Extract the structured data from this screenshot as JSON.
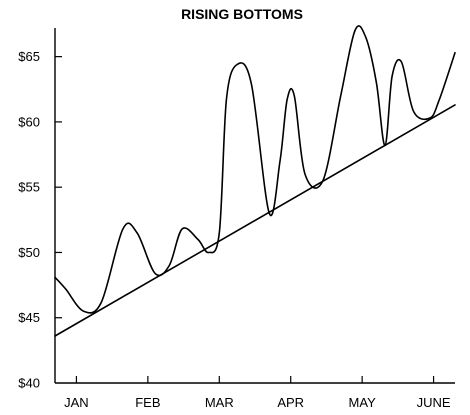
{
  "chart_data": {
    "type": "line",
    "title": "RISING BOTTOMS",
    "xlabel": "",
    "ylabel": "",
    "x_months": [
      "JAN",
      "FEB",
      "MAR",
      "APR",
      "MAY",
      "JUNE"
    ],
    "xlim": [
      -0.3,
      5.3
    ],
    "ylim": [
      40,
      67.5
    ],
    "y_ticks": [
      40,
      45,
      50,
      55,
      60,
      65
    ],
    "y_tick_labels": [
      "$40",
      "$45",
      "$50",
      "$55",
      "$60",
      "$65"
    ],
    "grid": false,
    "legend": "none",
    "series": [
      {
        "style": "smooth line",
        "x": [
          -0.3,
          -0.15,
          0.1,
          0.35,
          0.65,
          0.85,
          1.1,
          1.3,
          1.48,
          1.7,
          1.85,
          2.0,
          2.1,
          2.25,
          2.45,
          2.7,
          2.85,
          2.95,
          3.05,
          3.2,
          3.45,
          3.7,
          3.9,
          4.05,
          4.2,
          4.32,
          4.42,
          4.55,
          4.72,
          4.95,
          5.08,
          5.3
        ],
        "y": [
          48.1,
          47.2,
          45.5,
          46.2,
          51.8,
          51.5,
          48.4,
          49.0,
          51.8,
          51.0,
          50.0,
          51.5,
          61.7,
          64.4,
          62.9,
          53.0,
          57.0,
          61.7,
          62.0,
          56.0,
          55.5,
          62.0,
          67.0,
          66.5,
          63.0,
          58.2,
          63.5,
          64.6,
          60.8,
          60.3,
          61.7,
          65.3
        ]
      },
      {
        "style": "straight trendline",
        "x": [
          -0.3,
          5.3
        ],
        "y": [
          43.6,
          61.3
        ]
      }
    ]
  }
}
